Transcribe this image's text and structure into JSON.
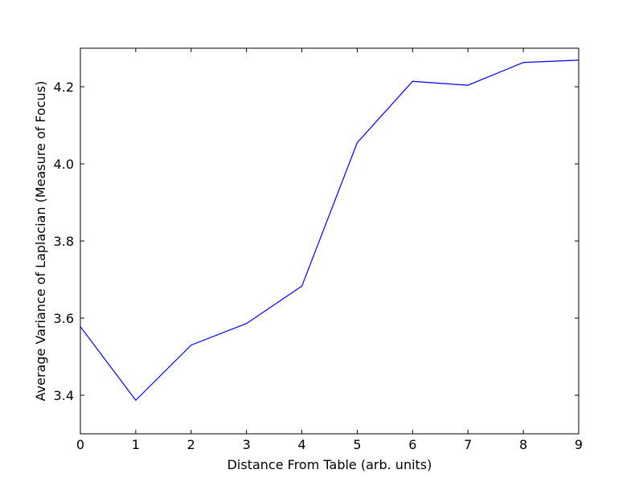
{
  "chart_data": {
    "type": "line",
    "title": "",
    "xlabel": "Distance From Table (arb. units)",
    "ylabel": "Average Variance of Laplacian (Measure of Focus)",
    "xlim": [
      0,
      9
    ],
    "ylim": [
      3.3,
      4.3
    ],
    "x_ticks": [
      "0",
      "1",
      "2",
      "3",
      "4",
      "5",
      "6",
      "7",
      "8",
      "9"
    ],
    "y_ticks": [
      "3.4",
      "3.6",
      "3.8",
      "4.0",
      "4.2"
    ],
    "grid": false,
    "legend": "none",
    "series": [
      {
        "color": "#0000ff",
        "x": [
          0,
          1,
          2,
          3,
          4,
          5,
          6,
          7,
          8,
          9
        ],
        "y": [
          3.578,
          3.387,
          3.53,
          3.586,
          3.683,
          4.055,
          4.214,
          4.204,
          4.263,
          4.269
        ]
      }
    ]
  }
}
